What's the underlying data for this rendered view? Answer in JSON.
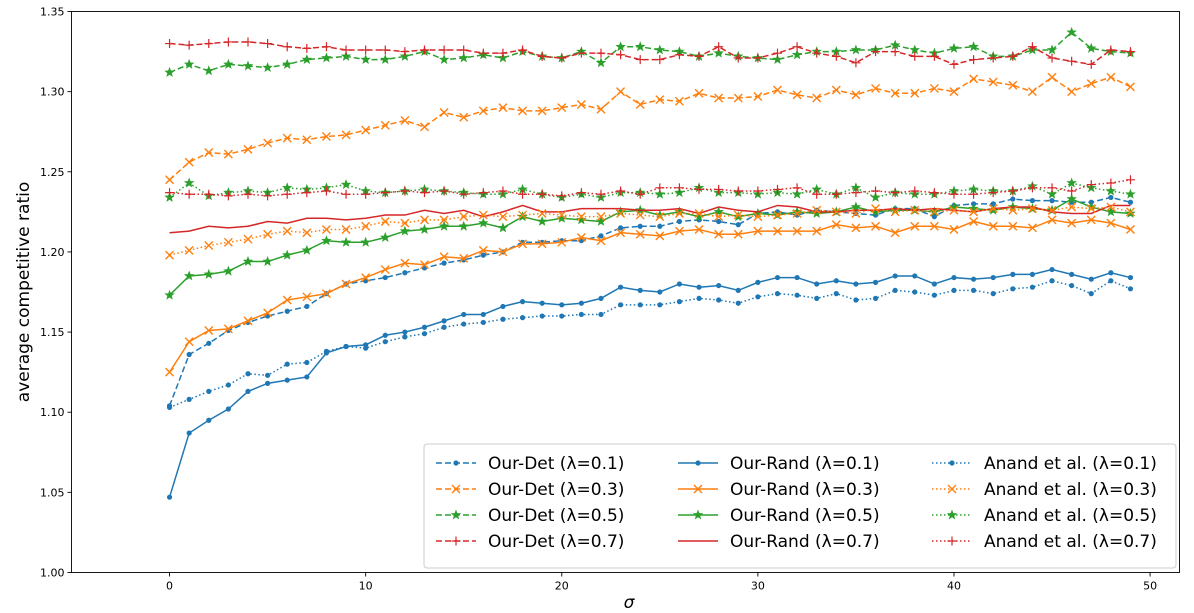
{
  "chart_data": {
    "type": "line",
    "title": "",
    "xlabel": "σ",
    "ylabel": "average competitive ratio",
    "xlim": [
      -5,
      51.5
    ],
    "ylim": [
      1.0,
      1.35
    ],
    "xticks": [
      0,
      10,
      20,
      30,
      40,
      50
    ],
    "yticks": [
      1.0,
      1.05,
      1.1,
      1.15,
      1.2,
      1.25,
      1.3,
      1.35
    ],
    "ytick_labels": [
      "1.00",
      "1.05",
      "1.10",
      "1.15",
      "1.20",
      "1.25",
      "1.30",
      "1.35"
    ],
    "grid": false,
    "legend_position": "lower-right",
    "legend_columns": 3,
    "x": [
      0,
      1,
      2,
      3,
      4,
      5,
      6,
      7,
      8,
      9,
      10,
      11,
      12,
      13,
      14,
      15,
      16,
      17,
      18,
      19,
      20,
      21,
      22,
      23,
      24,
      25,
      26,
      27,
      28,
      29,
      30,
      31,
      32,
      33,
      34,
      35,
      36,
      37,
      38,
      39,
      40,
      41,
      42,
      43,
      44,
      45,
      46,
      47,
      48,
      49
    ],
    "series": [
      {
        "name": "Our-Det (λ=0.1)",
        "color": "#1f77b4",
        "linestyle": "dashed",
        "marker": "dot",
        "values": [
          1.104,
          1.136,
          1.143,
          1.151,
          1.156,
          1.16,
          1.163,
          1.166,
          1.174,
          1.18,
          1.182,
          1.184,
          1.187,
          1.19,
          1.193,
          1.195,
          1.198,
          1.2,
          1.206,
          1.206,
          1.207,
          1.207,
          1.21,
          1.215,
          1.216,
          1.216,
          1.219,
          1.22,
          1.219,
          1.217,
          1.224,
          1.225,
          1.223,
          1.226,
          1.225,
          1.224,
          1.223,
          1.227,
          1.227,
          1.222,
          1.229,
          1.23,
          1.23,
          1.233,
          1.232,
          1.232,
          1.231,
          1.231,
          1.234,
          1.231
        ]
      },
      {
        "name": "Our-Det (λ=0.3)",
        "color": "#ff7f0e",
        "linestyle": "dashed",
        "marker": "x",
        "values": [
          1.245,
          1.256,
          1.262,
          1.261,
          1.264,
          1.268,
          1.271,
          1.27,
          1.272,
          1.273,
          1.276,
          1.279,
          1.282,
          1.278,
          1.287,
          1.284,
          1.288,
          1.29,
          1.288,
          1.288,
          1.29,
          1.292,
          1.289,
          1.3,
          1.292,
          1.295,
          1.294,
          1.299,
          1.296,
          1.296,
          1.297,
          1.301,
          1.298,
          1.296,
          1.301,
          1.298,
          1.302,
          1.299,
          1.299,
          1.302,
          1.3,
          1.308,
          1.306,
          1.304,
          1.3,
          1.309,
          1.3,
          1.305,
          1.309,
          1.303
        ]
      },
      {
        "name": "Our-Det (λ=0.5)",
        "color": "#2ca02c",
        "linestyle": "dashed",
        "marker": "star",
        "values": [
          1.312,
          1.317,
          1.313,
          1.317,
          1.316,
          1.315,
          1.317,
          1.32,
          1.321,
          1.322,
          1.32,
          1.32,
          1.322,
          1.325,
          1.32,
          1.321,
          1.323,
          1.321,
          1.325,
          1.322,
          1.321,
          1.325,
          1.318,
          1.328,
          1.328,
          1.326,
          1.325,
          1.322,
          1.324,
          1.322,
          1.321,
          1.32,
          1.323,
          1.325,
          1.325,
          1.326,
          1.326,
          1.329,
          1.326,
          1.324,
          1.327,
          1.328,
          1.322,
          1.322,
          1.326,
          1.326,
          1.337,
          1.327,
          1.325,
          1.324
        ]
      },
      {
        "name": "Our-Det (λ=0.7)",
        "color": "#d62728",
        "linestyle": "dashed",
        "marker": "plus",
        "values": [
          1.33,
          1.329,
          1.33,
          1.331,
          1.331,
          1.33,
          1.328,
          1.327,
          1.328,
          1.326,
          1.326,
          1.326,
          1.325,
          1.326,
          1.326,
          1.326,
          1.324,
          1.324,
          1.326,
          1.322,
          1.321,
          1.324,
          1.324,
          1.323,
          1.32,
          1.32,
          1.323,
          1.322,
          1.328,
          1.321,
          1.321,
          1.324,
          1.328,
          1.324,
          1.322,
          1.318,
          1.325,
          1.325,
          1.322,
          1.322,
          1.317,
          1.32,
          1.321,
          1.322,
          1.328,
          1.321,
          1.319,
          1.317,
          1.326,
          1.325
        ]
      },
      {
        "name": "Our-Rand (λ=0.1)",
        "color": "#1f77b4",
        "linestyle": "solid",
        "marker": "dot",
        "values": [
          1.047,
          1.087,
          1.095,
          1.102,
          1.113,
          1.118,
          1.12,
          1.122,
          1.137,
          1.141,
          1.142,
          1.148,
          1.15,
          1.153,
          1.157,
          1.161,
          1.161,
          1.166,
          1.169,
          1.168,
          1.167,
          1.168,
          1.171,
          1.178,
          1.176,
          1.175,
          1.18,
          1.178,
          1.179,
          1.176,
          1.181,
          1.184,
          1.184,
          1.18,
          1.182,
          1.18,
          1.181,
          1.185,
          1.185,
          1.18,
          1.184,
          1.183,
          1.184,
          1.186,
          1.186,
          1.189,
          1.186,
          1.183,
          1.187,
          1.184
        ]
      },
      {
        "name": "Our-Rand (λ=0.3)",
        "color": "#ff7f0e",
        "linestyle": "solid",
        "marker": "x",
        "values": [
          1.125,
          1.144,
          1.151,
          1.152,
          1.157,
          1.162,
          1.17,
          1.172,
          1.174,
          1.18,
          1.184,
          1.189,
          1.193,
          1.192,
          1.197,
          1.196,
          1.201,
          1.2,
          1.205,
          1.205,
          1.206,
          1.209,
          1.207,
          1.212,
          1.211,
          1.21,
          1.213,
          1.214,
          1.211,
          1.211,
          1.213,
          1.213,
          1.213,
          1.213,
          1.217,
          1.215,
          1.216,
          1.212,
          1.216,
          1.216,
          1.214,
          1.219,
          1.216,
          1.216,
          1.215,
          1.22,
          1.218,
          1.22,
          1.218,
          1.214
        ]
      },
      {
        "name": "Our-Rand (λ=0.5)",
        "color": "#2ca02c",
        "linestyle": "solid",
        "marker": "star",
        "values": [
          1.173,
          1.185,
          1.186,
          1.188,
          1.194,
          1.194,
          1.198,
          1.201,
          1.207,
          1.206,
          1.206,
          1.209,
          1.213,
          1.214,
          1.216,
          1.216,
          1.218,
          1.215,
          1.222,
          1.219,
          1.221,
          1.22,
          1.219,
          1.225,
          1.226,
          1.223,
          1.225,
          1.222,
          1.225,
          1.222,
          1.224,
          1.223,
          1.225,
          1.224,
          1.225,
          1.228,
          1.225,
          1.226,
          1.226,
          1.225,
          1.228,
          1.227,
          1.226,
          1.228,
          1.227,
          1.226,
          1.233,
          1.228,
          1.225,
          1.224
        ]
      },
      {
        "name": "Our-Rand (λ=0.7)",
        "color": "#d62728",
        "linestyle": "solid",
        "marker": "none",
        "values": [
          1.212,
          1.213,
          1.216,
          1.215,
          1.216,
          1.219,
          1.218,
          1.221,
          1.221,
          1.22,
          1.221,
          1.223,
          1.223,
          1.226,
          1.224,
          1.226,
          1.222,
          1.225,
          1.229,
          1.225,
          1.225,
          1.227,
          1.227,
          1.227,
          1.226,
          1.226,
          1.227,
          1.224,
          1.228,
          1.226,
          1.225,
          1.229,
          1.228,
          1.225,
          1.225,
          1.226,
          1.226,
          1.227,
          1.226,
          1.227,
          1.226,
          1.225,
          1.227,
          1.228,
          1.228,
          1.225,
          1.224,
          1.224,
          1.229,
          1.229
        ]
      },
      {
        "name": "Anand et al. (λ=0.1)",
        "color": "#1f77b4",
        "linestyle": "dotted",
        "marker": "dot",
        "values": [
          1.103,
          1.108,
          1.113,
          1.117,
          1.124,
          1.123,
          1.13,
          1.131,
          1.138,
          1.141,
          1.14,
          1.144,
          1.147,
          1.149,
          1.153,
          1.155,
          1.156,
          1.158,
          1.159,
          1.16,
          1.16,
          1.161,
          1.161,
          1.167,
          1.167,
          1.167,
          1.169,
          1.171,
          1.17,
          1.168,
          1.172,
          1.174,
          1.173,
          1.171,
          1.174,
          1.17,
          1.171,
          1.176,
          1.175,
          1.173,
          1.176,
          1.176,
          1.174,
          1.177,
          1.178,
          1.182,
          1.179,
          1.174,
          1.182,
          1.177
        ]
      },
      {
        "name": "Anand et al. (λ=0.3)",
        "color": "#ff7f0e",
        "linestyle": "dotted",
        "marker": "x",
        "values": [
          1.198,
          1.201,
          1.204,
          1.206,
          1.208,
          1.211,
          1.213,
          1.212,
          1.214,
          1.214,
          1.216,
          1.219,
          1.218,
          1.22,
          1.22,
          1.222,
          1.223,
          1.222,
          1.223,
          1.224,
          1.223,
          1.222,
          1.222,
          1.224,
          1.223,
          1.222,
          1.224,
          1.224,
          1.222,
          1.223,
          1.222,
          1.223,
          1.224,
          1.226,
          1.225,
          1.224,
          1.227,
          1.225,
          1.226,
          1.225,
          1.226,
          1.225,
          1.227,
          1.226,
          1.227,
          1.226,
          1.228,
          1.227,
          1.228,
          1.225
        ]
      },
      {
        "name": "Anand et al. (λ=0.5)",
        "color": "#2ca02c",
        "linestyle": "dotted",
        "marker": "star",
        "values": [
          1.234,
          1.243,
          1.235,
          1.237,
          1.238,
          1.237,
          1.24,
          1.239,
          1.24,
          1.242,
          1.238,
          1.237,
          1.238,
          1.239,
          1.238,
          1.237,
          1.236,
          1.236,
          1.239,
          1.236,
          1.234,
          1.236,
          1.234,
          1.237,
          1.237,
          1.236,
          1.237,
          1.24,
          1.237,
          1.237,
          1.236,
          1.237,
          1.236,
          1.239,
          1.236,
          1.24,
          1.234,
          1.237,
          1.236,
          1.236,
          1.238,
          1.239,
          1.238,
          1.238,
          1.241,
          1.236,
          1.243,
          1.24,
          1.238,
          1.236
        ]
      },
      {
        "name": "Anand et al. (λ=0.7)",
        "color": "#d62728",
        "linestyle": "dotted",
        "marker": "plus",
        "values": [
          1.237,
          1.236,
          1.236,
          1.235,
          1.236,
          1.235,
          1.236,
          1.237,
          1.238,
          1.236,
          1.236,
          1.237,
          1.238,
          1.237,
          1.238,
          1.236,
          1.237,
          1.238,
          1.236,
          1.236,
          1.235,
          1.237,
          1.236,
          1.238,
          1.236,
          1.24,
          1.24,
          1.239,
          1.239,
          1.238,
          1.238,
          1.239,
          1.24,
          1.236,
          1.236,
          1.237,
          1.238,
          1.237,
          1.238,
          1.237,
          1.236,
          1.236,
          1.237,
          1.238,
          1.24,
          1.24,
          1.238,
          1.242,
          1.243,
          1.245
        ]
      }
    ]
  }
}
